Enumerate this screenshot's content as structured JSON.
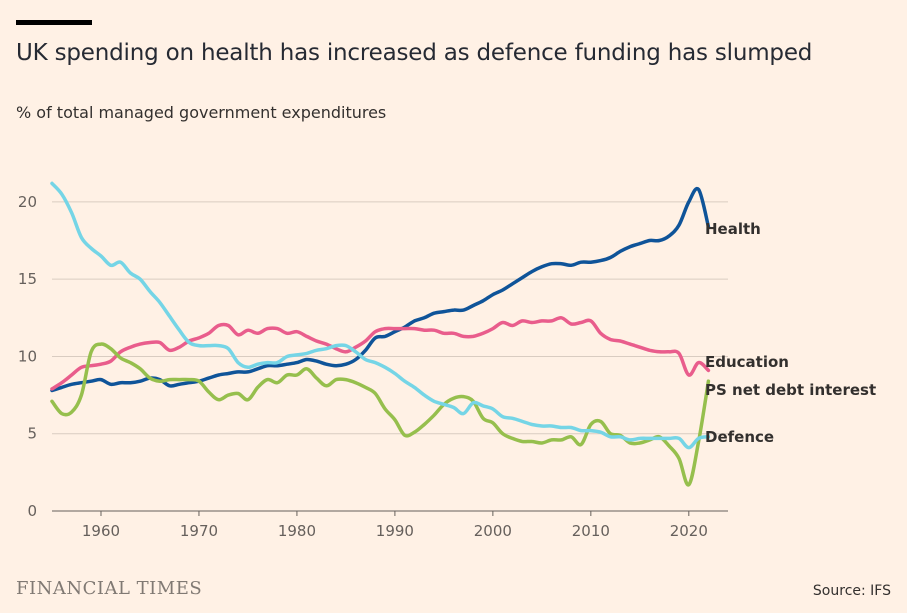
{
  "header": {
    "title": "UK spending on health has increased as defence funding has slumped",
    "subtitle": "% of total managed government expenditures"
  },
  "footer": {
    "brand": "FINANCIAL TIMES",
    "source": "Source: IFS"
  },
  "chart_data": {
    "type": "line",
    "title": "UK spending on health has increased as defence funding has slumped",
    "ylabel": "% of total managed government expenditures",
    "xlabel": "",
    "xlim": [
      1955,
      2024
    ],
    "ylim": [
      0,
      22
    ],
    "x_ticks": [
      "1960",
      "1970",
      "1980",
      "1990",
      "2000",
      "2010",
      "2020"
    ],
    "y_ticks": [
      "0",
      "5",
      "10",
      "15",
      "20"
    ],
    "grid": "horizontal",
    "legend": "direct labels at line ends",
    "series": [
      {
        "name": "Health",
        "color": "#0f5499",
        "points": [
          [
            1955,
            7.8
          ],
          [
            1956,
            8.0
          ],
          [
            1957,
            8.2
          ],
          [
            1958,
            8.3
          ],
          [
            1959,
            8.4
          ],
          [
            1960,
            8.5
          ],
          [
            1961,
            8.2
          ],
          [
            1962,
            8.3
          ],
          [
            1963,
            8.3
          ],
          [
            1964,
            8.4
          ],
          [
            1965,
            8.6
          ],
          [
            1966,
            8.5
          ],
          [
            1967,
            8.1
          ],
          [
            1968,
            8.2
          ],
          [
            1969,
            8.3
          ],
          [
            1970,
            8.4
          ],
          [
            1971,
            8.6
          ],
          [
            1972,
            8.8
          ],
          [
            1973,
            8.9
          ],
          [
            1974,
            9.0
          ],
          [
            1975,
            9.0
          ],
          [
            1976,
            9.2
          ],
          [
            1977,
            9.4
          ],
          [
            1978,
            9.4
          ],
          [
            1979,
            9.5
          ],
          [
            1980,
            9.6
          ],
          [
            1981,
            9.8
          ],
          [
            1982,
            9.7
          ],
          [
            1983,
            9.5
          ],
          [
            1984,
            9.4
          ],
          [
            1985,
            9.5
          ],
          [
            1986,
            9.8
          ],
          [
            1987,
            10.4
          ],
          [
            1988,
            11.2
          ],
          [
            1989,
            11.3
          ],
          [
            1990,
            11.6
          ],
          [
            1991,
            11.9
          ],
          [
            1992,
            12.3
          ],
          [
            1993,
            12.5
          ],
          [
            1994,
            12.8
          ],
          [
            1995,
            12.9
          ],
          [
            1996,
            13.0
          ],
          [
            1997,
            13.0
          ],
          [
            1998,
            13.3
          ],
          [
            1999,
            13.6
          ],
          [
            2000,
            14.0
          ],
          [
            2001,
            14.3
          ],
          [
            2002,
            14.7
          ],
          [
            2003,
            15.1
          ],
          [
            2004,
            15.5
          ],
          [
            2005,
            15.8
          ],
          [
            2006,
            16.0
          ],
          [
            2007,
            16.0
          ],
          [
            2008,
            15.9
          ],
          [
            2009,
            16.1
          ],
          [
            2010,
            16.1
          ],
          [
            2011,
            16.2
          ],
          [
            2012,
            16.4
          ],
          [
            2013,
            16.8
          ],
          [
            2014,
            17.1
          ],
          [
            2015,
            17.3
          ],
          [
            2016,
            17.5
          ],
          [
            2017,
            17.5
          ],
          [
            2018,
            17.8
          ],
          [
            2019,
            18.5
          ],
          [
            2020,
            20.0
          ],
          [
            2021,
            20.8
          ],
          [
            2022,
            18.4
          ]
        ]
      },
      {
        "name": "Education",
        "color": "#e95d8c",
        "points": [
          [
            1955,
            7.9
          ],
          [
            1956,
            8.3
          ],
          [
            1957,
            8.8
          ],
          [
            1958,
            9.3
          ],
          [
            1959,
            9.4
          ],
          [
            1960,
            9.5
          ],
          [
            1961,
            9.7
          ],
          [
            1962,
            10.3
          ],
          [
            1963,
            10.6
          ],
          [
            1964,
            10.8
          ],
          [
            1965,
            10.9
          ],
          [
            1966,
            10.9
          ],
          [
            1967,
            10.4
          ],
          [
            1968,
            10.6
          ],
          [
            1969,
            11.0
          ],
          [
            1970,
            11.2
          ],
          [
            1971,
            11.5
          ],
          [
            1972,
            12.0
          ],
          [
            1973,
            12.0
          ],
          [
            1974,
            11.4
          ],
          [
            1975,
            11.7
          ],
          [
            1976,
            11.5
          ],
          [
            1977,
            11.8
          ],
          [
            1978,
            11.8
          ],
          [
            1979,
            11.5
          ],
          [
            1980,
            11.6
          ],
          [
            1981,
            11.3
          ],
          [
            1982,
            11.0
          ],
          [
            1983,
            10.8
          ],
          [
            1984,
            10.5
          ],
          [
            1985,
            10.3
          ],
          [
            1986,
            10.6
          ],
          [
            1987,
            11.0
          ],
          [
            1988,
            11.6
          ],
          [
            1989,
            11.8
          ],
          [
            1990,
            11.8
          ],
          [
            1991,
            11.8
          ],
          [
            1992,
            11.8
          ],
          [
            1993,
            11.7
          ],
          [
            1994,
            11.7
          ],
          [
            1995,
            11.5
          ],
          [
            1996,
            11.5
          ],
          [
            1997,
            11.3
          ],
          [
            1998,
            11.3
          ],
          [
            1999,
            11.5
          ],
          [
            2000,
            11.8
          ],
          [
            2001,
            12.2
          ],
          [
            2002,
            12.0
          ],
          [
            2003,
            12.3
          ],
          [
            2004,
            12.2
          ],
          [
            2005,
            12.3
          ],
          [
            2006,
            12.3
          ],
          [
            2007,
            12.5
          ],
          [
            2008,
            12.1
          ],
          [
            2009,
            12.2
          ],
          [
            2010,
            12.3
          ],
          [
            2011,
            11.5
          ],
          [
            2012,
            11.1
          ],
          [
            2013,
            11.0
          ],
          [
            2014,
            10.8
          ],
          [
            2015,
            10.6
          ],
          [
            2016,
            10.4
          ],
          [
            2017,
            10.3
          ],
          [
            2018,
            10.3
          ],
          [
            2019,
            10.2
          ],
          [
            2020,
            8.8
          ],
          [
            2021,
            9.6
          ],
          [
            2022,
            9.1
          ]
        ]
      },
      {
        "name": "PS net debt interest",
        "color": "#96bf4d",
        "points": [
          [
            1955,
            7.1
          ],
          [
            1956,
            6.3
          ],
          [
            1957,
            6.4
          ],
          [
            1958,
            7.5
          ],
          [
            1959,
            10.3
          ],
          [
            1960,
            10.8
          ],
          [
            1961,
            10.5
          ],
          [
            1962,
            9.9
          ],
          [
            1963,
            9.6
          ],
          [
            1964,
            9.2
          ],
          [
            1965,
            8.6
          ],
          [
            1966,
            8.4
          ],
          [
            1967,
            8.5
          ],
          [
            1968,
            8.5
          ],
          [
            1969,
            8.5
          ],
          [
            1970,
            8.4
          ],
          [
            1971,
            7.7
          ],
          [
            1972,
            7.2
          ],
          [
            1973,
            7.5
          ],
          [
            1974,
            7.6
          ],
          [
            1975,
            7.2
          ],
          [
            1976,
            8.0
          ],
          [
            1977,
            8.5
          ],
          [
            1978,
            8.3
          ],
          [
            1979,
            8.8
          ],
          [
            1980,
            8.8
          ],
          [
            1981,
            9.2
          ],
          [
            1982,
            8.6
          ],
          [
            1983,
            8.1
          ],
          [
            1984,
            8.5
          ],
          [
            1985,
            8.5
          ],
          [
            1986,
            8.3
          ],
          [
            1987,
            8.0
          ],
          [
            1988,
            7.6
          ],
          [
            1989,
            6.6
          ],
          [
            1990,
            5.9
          ],
          [
            1991,
            4.9
          ],
          [
            1992,
            5.1
          ],
          [
            1993,
            5.6
          ],
          [
            1994,
            6.2
          ],
          [
            1995,
            6.9
          ],
          [
            1996,
            7.3
          ],
          [
            1997,
            7.4
          ],
          [
            1998,
            7.1
          ],
          [
            1999,
            6.0
          ],
          [
            2000,
            5.7
          ],
          [
            2001,
            5.0
          ],
          [
            2002,
            4.7
          ],
          [
            2003,
            4.5
          ],
          [
            2004,
            4.5
          ],
          [
            2005,
            4.4
          ],
          [
            2006,
            4.6
          ],
          [
            2007,
            4.6
          ],
          [
            2008,
            4.8
          ],
          [
            2009,
            4.3
          ],
          [
            2010,
            5.6
          ],
          [
            2011,
            5.8
          ],
          [
            2012,
            5.0
          ],
          [
            2013,
            4.9
          ],
          [
            2014,
            4.4
          ],
          [
            2015,
            4.4
          ],
          [
            2016,
            4.6
          ],
          [
            2017,
            4.8
          ],
          [
            2018,
            4.2
          ],
          [
            2019,
            3.4
          ],
          [
            2020,
            1.7
          ],
          [
            2021,
            4.5
          ],
          [
            2022,
            8.4
          ]
        ]
      },
      {
        "name": "Defence",
        "color": "#75d5e6",
        "points": [
          [
            1955,
            21.2
          ],
          [
            1956,
            20.5
          ],
          [
            1957,
            19.3
          ],
          [
            1958,
            17.7
          ],
          [
            1959,
            17.0
          ],
          [
            1960,
            16.5
          ],
          [
            1961,
            15.9
          ],
          [
            1962,
            16.1
          ],
          [
            1963,
            15.4
          ],
          [
            1964,
            15.0
          ],
          [
            1965,
            14.2
          ],
          [
            1966,
            13.5
          ],
          [
            1967,
            12.6
          ],
          [
            1968,
            11.7
          ],
          [
            1969,
            10.9
          ],
          [
            1970,
            10.7
          ],
          [
            1971,
            10.7
          ],
          [
            1972,
            10.7
          ],
          [
            1973,
            10.5
          ],
          [
            1974,
            9.6
          ],
          [
            1975,
            9.3
          ],
          [
            1976,
            9.5
          ],
          [
            1977,
            9.6
          ],
          [
            1978,
            9.6
          ],
          [
            1979,
            10.0
          ],
          [
            1980,
            10.1
          ],
          [
            1981,
            10.2
          ],
          [
            1982,
            10.4
          ],
          [
            1983,
            10.5
          ],
          [
            1984,
            10.7
          ],
          [
            1985,
            10.7
          ],
          [
            1986,
            10.3
          ],
          [
            1987,
            9.8
          ],
          [
            1988,
            9.6
          ],
          [
            1989,
            9.3
          ],
          [
            1990,
            8.9
          ],
          [
            1991,
            8.4
          ],
          [
            1992,
            8.0
          ],
          [
            1993,
            7.5
          ],
          [
            1994,
            7.1
          ],
          [
            1995,
            6.9
          ],
          [
            1996,
            6.7
          ],
          [
            1997,
            6.3
          ],
          [
            1998,
            7.0
          ],
          [
            1999,
            6.8
          ],
          [
            2000,
            6.6
          ],
          [
            2001,
            6.1
          ],
          [
            2002,
            6.0
          ],
          [
            2003,
            5.8
          ],
          [
            2004,
            5.6
          ],
          [
            2005,
            5.5
          ],
          [
            2006,
            5.5
          ],
          [
            2007,
            5.4
          ],
          [
            2008,
            5.4
          ],
          [
            2009,
            5.2
          ],
          [
            2010,
            5.2
          ],
          [
            2011,
            5.1
          ],
          [
            2012,
            4.8
          ],
          [
            2013,
            4.8
          ],
          [
            2014,
            4.6
          ],
          [
            2015,
            4.7
          ],
          [
            2016,
            4.7
          ],
          [
            2017,
            4.7
          ],
          [
            2018,
            4.7
          ],
          [
            2019,
            4.7
          ],
          [
            2020,
            4.1
          ],
          [
            2021,
            4.7
          ],
          [
            2022,
            4.8
          ]
        ]
      }
    ]
  }
}
